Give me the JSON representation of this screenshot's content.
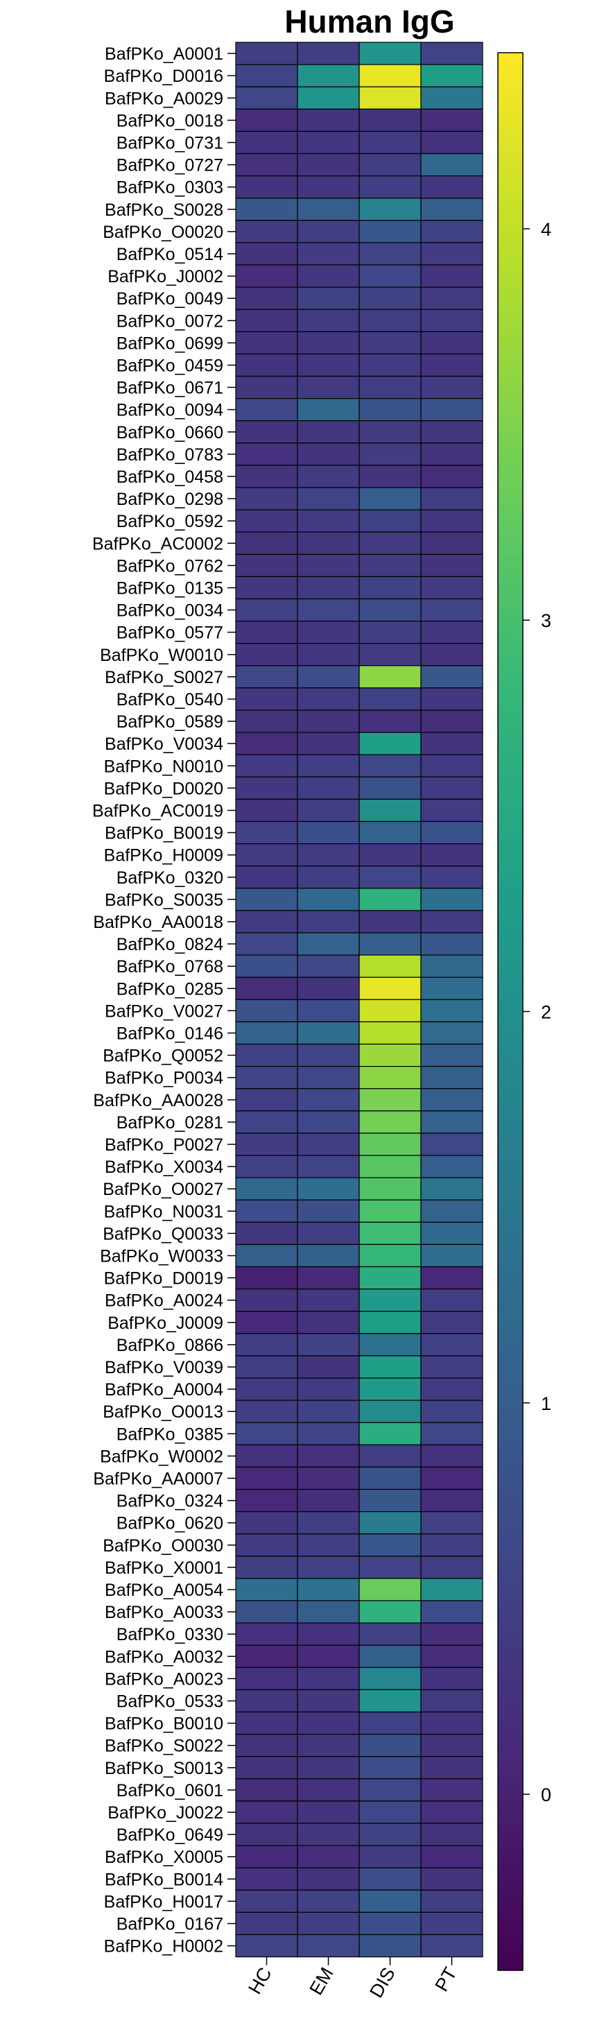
{
  "chart_data": {
    "type": "heatmap",
    "title": "Human  IgG",
    "columns": [
      "HC",
      "EM",
      "DIS",
      "PT"
    ],
    "rows": [
      "BafPKo_A0001",
      "BafPKo_D0016",
      "BafPKo_A0029",
      "BafPKo_0018",
      "BafPKo_0731",
      "BafPKo_0727",
      "BafPKo_0303",
      "BafPKo_S0028",
      "BafPKo_O0020",
      "BafPKo_0514",
      "BafPKo_J0002",
      "BafPKo_0049",
      "BafPKo_0072",
      "BafPKo_0699",
      "BafPKo_0459",
      "BafPKo_0671",
      "BafPKo_0094",
      "BafPKo_0660",
      "BafPKo_0783",
      "BafPKo_0458",
      "BafPKo_0298",
      "BafPKo_0592",
      "BafPKo_AC0002",
      "BafPKo_0762",
      "BafPKo_0135",
      "BafPKo_0034",
      "BafPKo_0577",
      "BafPKo_W0010",
      "BafPKo_S0027",
      "BafPKo_0540",
      "BafPKo_0589",
      "BafPKo_V0034",
      "BafPKo_N0010",
      "BafPKo_D0020",
      "BafPKo_AC0019",
      "BafPKo_B0019",
      "BafPKo_H0009",
      "BafPKo_0320",
      "BafPKo_S0035",
      "BafPKo_AA0018",
      "BafPKo_0824",
      "BafPKo_0768",
      "BafPKo_0285",
      "BafPKo_V0027",
      "BafPKo_0146",
      "BafPKo_Q0052",
      "BafPKo_P0034",
      "BafPKo_AA0028",
      "BafPKo_0281",
      "BafPKo_P0027",
      "BafPKo_X0034",
      "BafPKo_O0027",
      "BafPKo_N0031",
      "BafPKo_Q0033",
      "BafPKo_W0033",
      "BafPKo_D0019",
      "BafPKo_A0024",
      "BafPKo_J0009",
      "BafPKo_0866",
      "BafPKo_V0039",
      "BafPKo_A0004",
      "BafPKo_O0013",
      "BafPKo_0385",
      "BafPKo_W0002",
      "BafPKo_AA0007",
      "BafPKo_0324",
      "BafPKo_0620",
      "BafPKo_O0030",
      "BafPKo_X0001",
      "BafPKo_A0054",
      "BafPKo_A0033",
      "BafPKo_0330",
      "BafPKo_A0032",
      "BafPKo_A0023",
      "BafPKo_0533",
      "BafPKo_B0010",
      "BafPKo_S0022",
      "BafPKo_S0013",
      "BafPKo_0601",
      "BafPKo_J0022",
      "BafPKo_0649",
      "BafPKo_X0005",
      "BafPKo_B0014",
      "BafPKo_H0017",
      "BafPKo_0167",
      "BafPKo_H0002"
    ],
    "values": [
      [
        0.45,
        0.45,
        2.1,
        0.55
      ],
      [
        0.55,
        2.1,
        4.3,
        2.3
      ],
      [
        0.6,
        2.1,
        4.2,
        1.5
      ],
      [
        0.2,
        0.3,
        0.3,
        0.2
      ],
      [
        0.3,
        0.35,
        0.4,
        0.3
      ],
      [
        0.25,
        0.3,
        0.45,
        1.2
      ],
      [
        0.3,
        0.35,
        0.45,
        0.35
      ],
      [
        0.9,
        1.0,
        1.7,
        1.0
      ],
      [
        0.4,
        0.45,
        0.9,
        0.5
      ],
      [
        0.3,
        0.4,
        0.55,
        0.4
      ],
      [
        0.2,
        0.35,
        0.6,
        0.3
      ],
      [
        0.3,
        0.5,
        0.5,
        0.4
      ],
      [
        0.3,
        0.4,
        0.45,
        0.4
      ],
      [
        0.3,
        0.35,
        0.4,
        0.3
      ],
      [
        0.3,
        0.35,
        0.4,
        0.3
      ],
      [
        0.35,
        0.4,
        0.45,
        0.4
      ],
      [
        0.6,
        1.2,
        0.8,
        0.8
      ],
      [
        0.3,
        0.35,
        0.4,
        0.35
      ],
      [
        0.25,
        0.3,
        0.4,
        0.3
      ],
      [
        0.3,
        0.4,
        0.3,
        0.2
      ],
      [
        0.4,
        0.55,
        1.0,
        0.45
      ],
      [
        0.35,
        0.4,
        0.5,
        0.35
      ],
      [
        0.3,
        0.35,
        0.4,
        0.3
      ],
      [
        0.3,
        0.35,
        0.4,
        0.3
      ],
      [
        0.35,
        0.4,
        0.5,
        0.4
      ],
      [
        0.5,
        0.6,
        0.7,
        0.55
      ],
      [
        0.3,
        0.35,
        0.45,
        0.35
      ],
      [
        0.3,
        0.35,
        0.4,
        0.3
      ],
      [
        0.6,
        0.7,
        3.6,
        0.9
      ],
      [
        0.35,
        0.4,
        0.5,
        0.35
      ],
      [
        0.3,
        0.3,
        0.25,
        0.2
      ],
      [
        0.2,
        0.3,
        2.3,
        0.3
      ],
      [
        0.4,
        0.45,
        0.6,
        0.4
      ],
      [
        0.35,
        0.45,
        0.8,
        0.4
      ],
      [
        0.3,
        0.45,
        2.0,
        0.4
      ],
      [
        0.5,
        0.75,
        1.1,
        0.8
      ],
      [
        0.4,
        0.4,
        0.35,
        0.3
      ],
      [
        0.35,
        0.45,
        0.6,
        0.45
      ],
      [
        0.9,
        1.2,
        2.7,
        1.3
      ],
      [
        0.4,
        0.45,
        0.35,
        0.4
      ],
      [
        0.6,
        1.1,
        1.0,
        0.9
      ],
      [
        0.75,
        0.6,
        3.9,
        1.2
      ],
      [
        0.2,
        0.3,
        4.3,
        1.3
      ],
      [
        0.8,
        0.7,
        4.1,
        1.35
      ],
      [
        1.1,
        1.3,
        3.9,
        1.25
      ],
      [
        0.5,
        0.55,
        3.7,
        1.0
      ],
      [
        0.55,
        0.6,
        3.6,
        1.0
      ],
      [
        0.45,
        0.6,
        3.45,
        1.0
      ],
      [
        0.55,
        0.6,
        3.4,
        1.1
      ],
      [
        0.4,
        0.45,
        3.25,
        0.6
      ],
      [
        0.5,
        0.55,
        3.15,
        1.0
      ],
      [
        1.2,
        1.3,
        3.1,
        1.5
      ],
      [
        0.7,
        0.75,
        3.05,
        1.1
      ],
      [
        0.35,
        0.45,
        2.9,
        1.2
      ],
      [
        1.0,
        1.05,
        2.8,
        1.3
      ],
      [
        0.0,
        0.15,
        2.6,
        0.1
      ],
      [
        0.3,
        0.35,
        2.2,
        0.45
      ],
      [
        0.15,
        0.3,
        2.3,
        0.4
      ],
      [
        0.45,
        0.5,
        1.4,
        0.5
      ],
      [
        0.45,
        0.3,
        2.3,
        0.45
      ],
      [
        0.4,
        0.4,
        2.2,
        0.4
      ],
      [
        0.45,
        0.5,
        1.9,
        0.5
      ],
      [
        0.6,
        0.55,
        2.6,
        0.6
      ],
      [
        0.25,
        0.25,
        0.45,
        0.25
      ],
      [
        0.15,
        0.2,
        0.8,
        0.15
      ],
      [
        0.1,
        0.2,
        0.9,
        0.2
      ],
      [
        0.35,
        0.45,
        1.6,
        0.5
      ],
      [
        0.4,
        0.45,
        0.9,
        0.45
      ],
      [
        0.45,
        0.5,
        0.55,
        0.45
      ],
      [
        1.3,
        1.4,
        3.3,
        2.0
      ],
      [
        0.8,
        1.0,
        2.7,
        0.7
      ],
      [
        0.25,
        0.25,
        0.5,
        0.2
      ],
      [
        0.05,
        0.15,
        1.05,
        0.2
      ],
      [
        0.25,
        0.35,
        1.8,
        0.3
      ],
      [
        0.35,
        0.35,
        2.1,
        0.4
      ],
      [
        0.3,
        0.3,
        0.5,
        0.3
      ],
      [
        0.3,
        0.35,
        0.75,
        0.3
      ],
      [
        0.3,
        0.35,
        0.7,
        0.3
      ],
      [
        0.2,
        0.25,
        0.6,
        0.25
      ],
      [
        0.25,
        0.3,
        0.6,
        0.25
      ],
      [
        0.3,
        0.35,
        0.5,
        0.3
      ],
      [
        0.15,
        0.2,
        0.4,
        0.15
      ],
      [
        0.25,
        0.3,
        0.7,
        0.3
      ],
      [
        0.45,
        0.5,
        1.05,
        0.45
      ],
      [
        0.4,
        0.45,
        0.75,
        0.45
      ],
      [
        0.55,
        0.6,
        0.8,
        0.55
      ]
    ],
    "colorbar": {
      "range": [
        -0.45,
        4.45
      ],
      "ticks": [
        0,
        1,
        2,
        3,
        4
      ],
      "colormap": "viridis"
    }
  }
}
